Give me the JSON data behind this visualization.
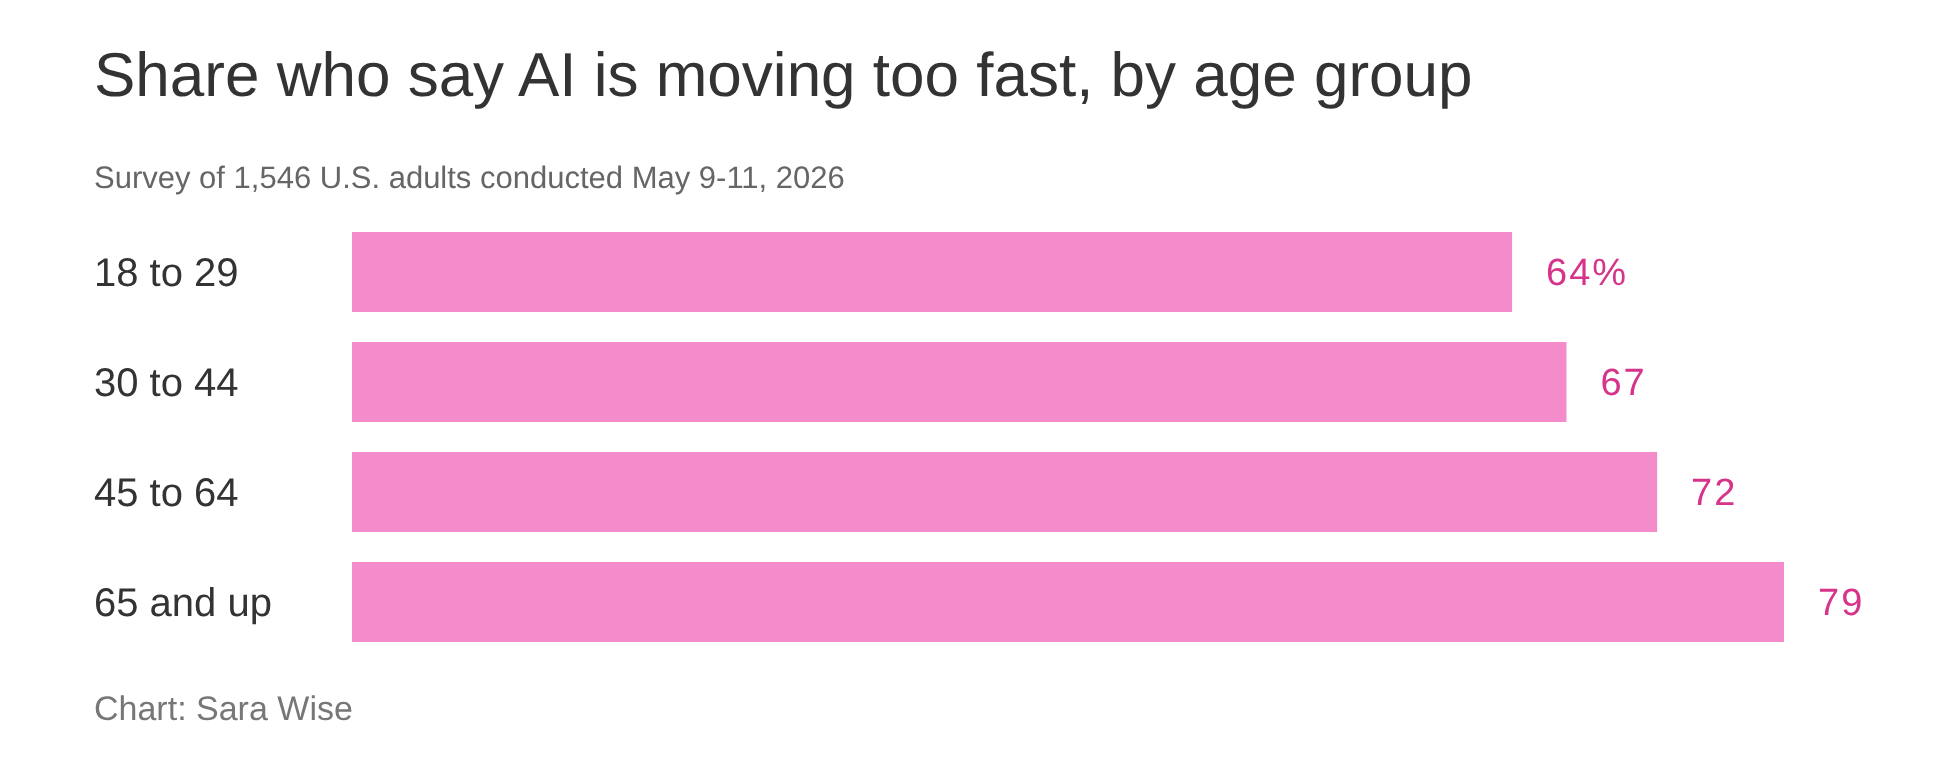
{
  "chart_data": {
    "type": "bar",
    "orientation": "horizontal",
    "title": "Share who say AI is moving too fast, by age group",
    "subtitle": "Survey of 1,546 U.S. adults conducted May 9-11, 2026",
    "categories": [
      "18 to 29",
      "30 to 44",
      "45 to 64",
      "65 and up"
    ],
    "values": [
      64,
      67,
      72,
      79
    ],
    "value_labels": [
      "64%",
      "67",
      "72",
      "79"
    ],
    "color": "#f48bcb",
    "annotations": [
      "Chart: Sara Wise"
    ]
  }
}
